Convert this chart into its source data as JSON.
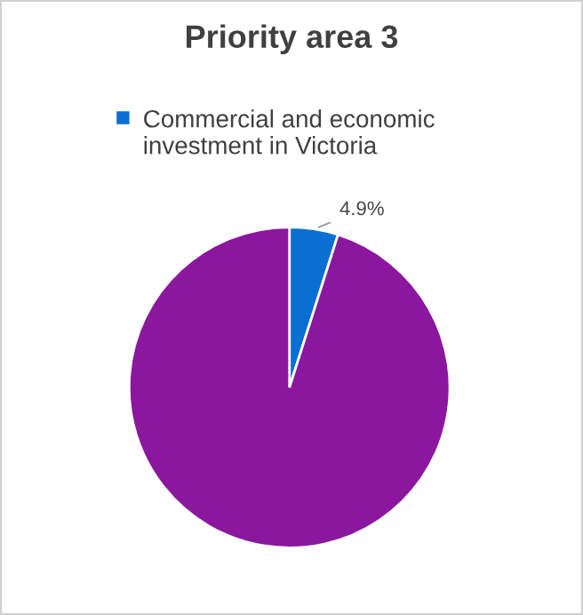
{
  "chart_data": {
    "type": "pie",
    "title": "Priority area 3",
    "categories": [
      "Commercial and economic investment in Victoria",
      null
    ],
    "values": [
      4.9,
      95.1
    ],
    "colors": [
      "#0a6fd1",
      "#8a179e"
    ],
    "value_labels": [
      "4.9%",
      null
    ],
    "legend": "top"
  }
}
